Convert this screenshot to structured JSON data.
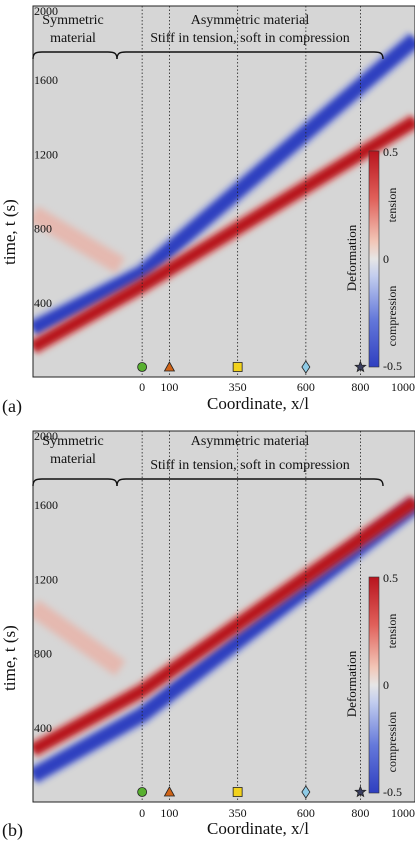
{
  "figure": {
    "xlabel": "Coordinate, x/l",
    "ylabel": "time, t (s)"
  },
  "colorbar": {
    "title": "Deformation",
    "label_tension": "tension",
    "label_compression": "compression",
    "tick_top": "0.5",
    "tick_mid": "0",
    "tick_bottom": "-0.5",
    "range": [
      -0.5,
      0.5
    ]
  },
  "regions": {
    "symmetric_line1": "Symmetric",
    "symmetric_line2": "material",
    "asymmetric_line1": "Asymmetric material",
    "asymmetric_line2": "Stiff in tension, soft in compression"
  },
  "colors": {
    "background": "#d6d6d6",
    "tension": "#b8141e",
    "compression": "#2f3fc0"
  },
  "chart_data": [
    {
      "type": "heatmap",
      "panel_label": "(a)",
      "xlabel": "Coordinate, x/l",
      "ylabel": "time, t (s)",
      "xlim": [
        -400,
        1000
      ],
      "ylim": [
        0,
        2000
      ],
      "xticks": [
        "0",
        "100",
        "350",
        "600",
        "800",
        "1000"
      ],
      "yticks": [
        "400",
        "800",
        "1200",
        "1600",
        "2000"
      ],
      "markers": [
        {
          "x": 0,
          "shape": "circle",
          "color": "#58b030"
        },
        {
          "x": 100,
          "shape": "triangle",
          "color": "#d06418"
        },
        {
          "x": 350,
          "shape": "square",
          "color": "#f2d21c"
        },
        {
          "x": 600,
          "shape": "diamond",
          "color": "#8fcbe6"
        },
        {
          "x": 800,
          "shape": "star",
          "color": "#3a3e60"
        }
      ],
      "bands": [
        {
          "kind": "compression",
          "points": [
            [
              -400,
              260
            ],
            [
              0,
              560
            ],
            [
              1000,
              1820
            ]
          ]
        },
        {
          "kind": "tension",
          "points": [
            [
              -400,
              160
            ],
            [
              0,
              490
            ],
            [
              1000,
              1380
            ]
          ]
        },
        {
          "kind": "tension_faint",
          "points": [
            [
              -400,
              880
            ],
            [
              -80,
              600
            ]
          ]
        }
      ]
    },
    {
      "type": "heatmap",
      "panel_label": "(b)",
      "xlabel": "Coordinate, x/l",
      "ylabel": "time, t (s)",
      "xlim": [
        -400,
        1000
      ],
      "ylim": [
        0,
        2000
      ],
      "xticks": [
        "0",
        "100",
        "350",
        "600",
        "800",
        "1000"
      ],
      "yticks": [
        "400",
        "800",
        "1200",
        "1600",
        "2000"
      ],
      "markers": [
        {
          "x": 0,
          "shape": "circle",
          "color": "#58b030"
        },
        {
          "x": 100,
          "shape": "triangle",
          "color": "#d06418"
        },
        {
          "x": 350,
          "shape": "square",
          "color": "#f2d21c"
        },
        {
          "x": 600,
          "shape": "diamond",
          "color": "#8fcbe6"
        },
        {
          "x": 800,
          "shape": "star",
          "color": "#3a3e60"
        }
      ],
      "bands": [
        {
          "kind": "compression",
          "points": [
            [
              -400,
              140
            ],
            [
              0,
              470
            ],
            [
              1000,
              1600
            ]
          ]
        },
        {
          "kind": "tension",
          "points": [
            [
              -400,
              280
            ],
            [
              0,
              600
            ],
            [
              1000,
              1620
            ]
          ]
        },
        {
          "kind": "tension_faint",
          "points": [
            [
              -400,
              1050
            ],
            [
              -80,
              720
            ]
          ]
        }
      ]
    }
  ]
}
